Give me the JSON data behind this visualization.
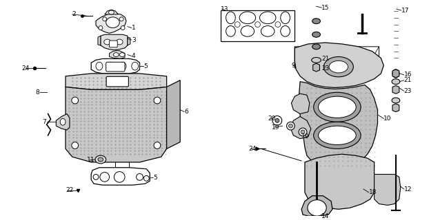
{
  "bg_color": "#ffffff",
  "fig_width": 6.22,
  "fig_height": 3.2,
  "dpi": 100,
  "text_color": "#000000",
  "line_color": "#000000",
  "label_fontsize": 6.5
}
